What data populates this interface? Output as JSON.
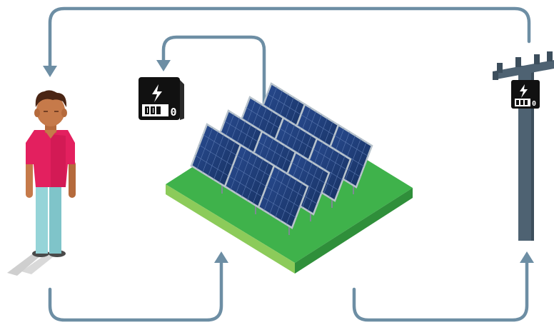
{
  "colors": {
    "arrow": "#6d8ea4",
    "ground_top": "#3fb24b",
    "ground_side_left": "#8ccb5a",
    "ground_side_right": "#2f8f3a",
    "panel": "#1e3a78",
    "panel_frame": "#b8c3cc",
    "pole": "#4e6272",
    "meter_body": "#111111",
    "shirt": "#e3205f",
    "pants": "#95d4d8",
    "skin": "#c67a4a",
    "hair": "#4a2514"
  },
  "icons": {
    "meter_left": "lightning-meter-icon",
    "meter_pole": "lightning-meter-icon",
    "person": "person-icon",
    "solar_farm": "solar-panel-array-icon",
    "utility_pole": "utility-pole-icon"
  },
  "meters": {
    "left_digit": "0",
    "pole_digit": "0"
  }
}
